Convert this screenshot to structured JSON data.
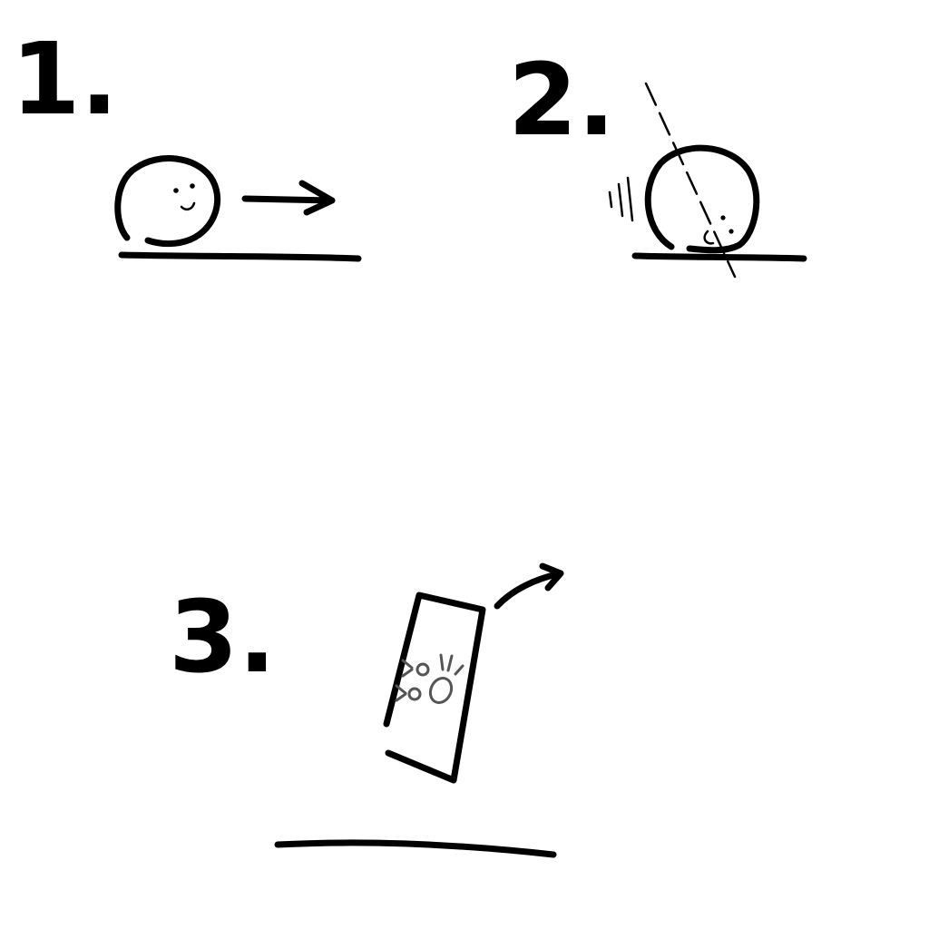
{
  "panels": [
    {
      "label": "1."
    },
    {
      "label": "2."
    },
    {
      "label": "3."
    }
  ],
  "colors": {
    "ink": "#000000",
    "background": "#ffffff",
    "face_gray": "#555555"
  }
}
